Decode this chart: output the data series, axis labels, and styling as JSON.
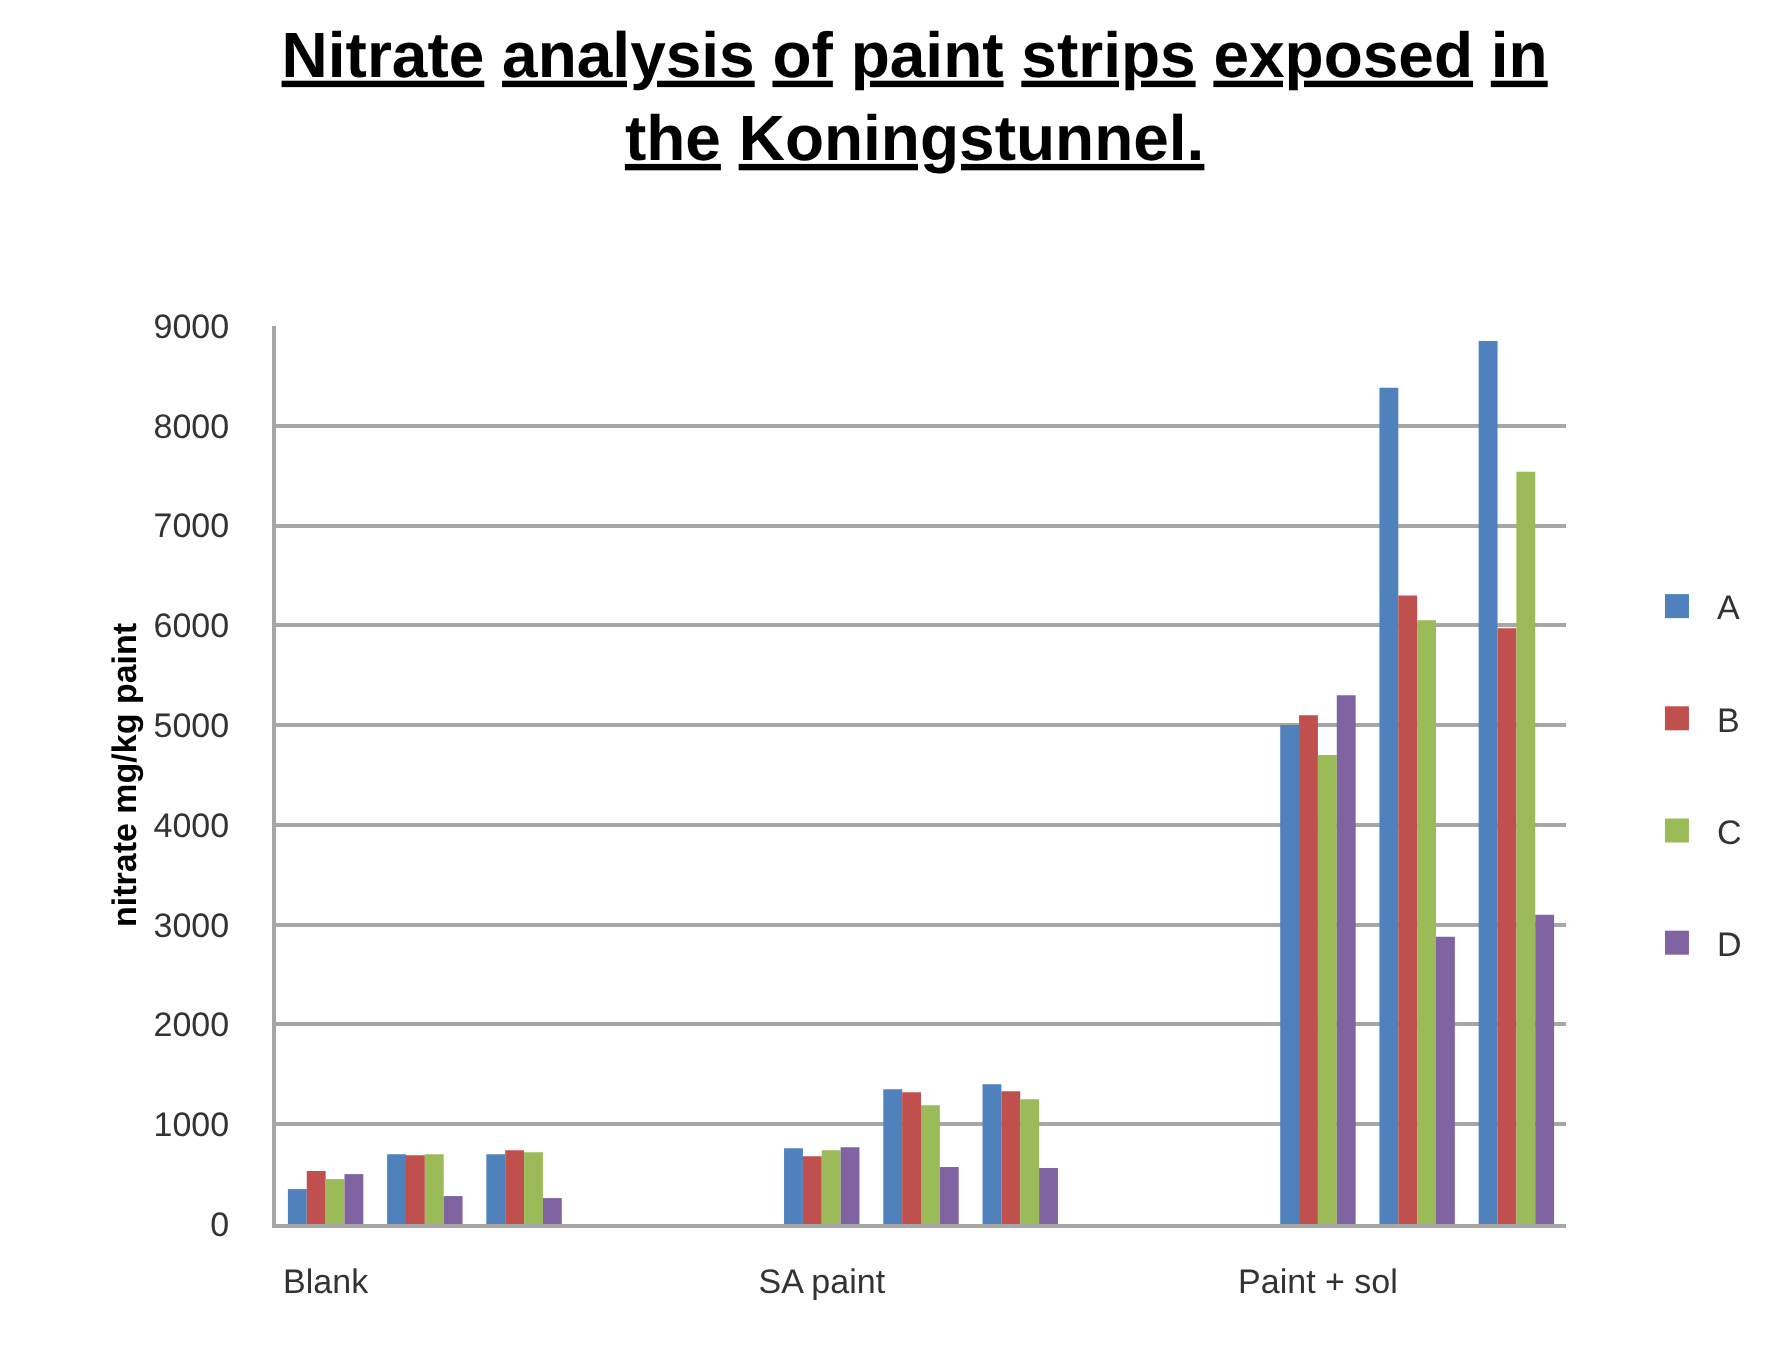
{
  "chart_data": {
    "type": "bar",
    "title": "Nitrate analysis of paint strips exposed in the Koningstunnel.",
    "ylabel": "nitrate mg/kg paint",
    "categories": [
      "Blank",
      null,
      null,
      null,
      null,
      "SA paint",
      null,
      null,
      null,
      null,
      "Paint + sol",
      null,
      null
    ],
    "series": [
      {
        "name": "A",
        "color": "#4f81bd",
        "values": [
          350,
          700,
          700,
          null,
          null,
          760,
          1350,
          1400,
          null,
          null,
          5000,
          8380,
          8850
        ]
      },
      {
        "name": "B",
        "color": "#c0504d",
        "values": [
          530,
          690,
          740,
          null,
          null,
          680,
          1320,
          1330,
          null,
          null,
          5100,
          6300,
          5970
        ]
      },
      {
        "name": "C",
        "color": "#9bbb59",
        "values": [
          450,
          700,
          720,
          null,
          null,
          740,
          1190,
          1250,
          null,
          null,
          4700,
          6050,
          7540
        ]
      },
      {
        "name": "D",
        "color": "#8064a2",
        "values": [
          500,
          280,
          260,
          null,
          null,
          770,
          570,
          560,
          null,
          null,
          5300,
          2880,
          3100
        ]
      }
    ],
    "ylim": [
      0,
      9000
    ],
    "yticks": [
      0,
      1000,
      2000,
      3000,
      4000,
      5000,
      6000,
      7000,
      8000,
      9000
    ],
    "grid": "y",
    "legend": "right"
  }
}
